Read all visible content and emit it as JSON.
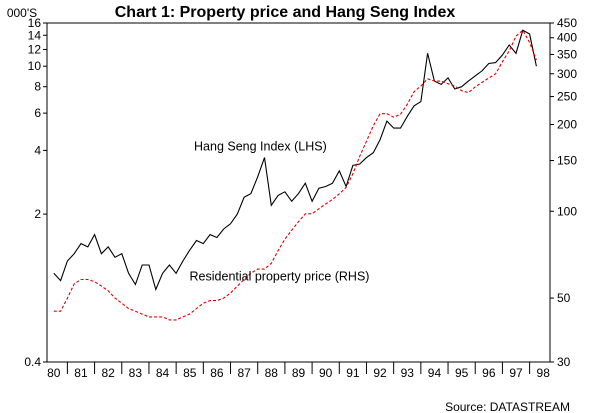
{
  "chart_data": {
    "type": "line",
    "title": "Chart 1: Property price and Hang Seng Index",
    "left_axis_unit": "000'S",
    "source": "Source: DATASTREAM",
    "x_categories": [
      "80",
      "81",
      "82",
      "83",
      "84",
      "85",
      "86",
      "87",
      "88",
      "89",
      "90",
      "91",
      "92",
      "93",
      "94",
      "95",
      "96",
      "97",
      "98"
    ],
    "y_left": {
      "scale": "log",
      "range": [
        0.4,
        16
      ],
      "ticks": [
        "0.4",
        "2",
        "4",
        "6",
        "8",
        "10",
        "12",
        "14",
        "16"
      ]
    },
    "y_right": {
      "scale": "log",
      "range": [
        30,
        450
      ],
      "ticks": [
        "30",
        "50",
        "100",
        "150",
        "200",
        "250",
        "300",
        "350",
        "400",
        "450"
      ]
    },
    "series": [
      {
        "name": "Hang Seng Index (LHS)",
        "axis": "left",
        "color": "#000000",
        "style": "solid",
        "x": [
          80.0,
          80.25,
          80.5,
          80.75,
          81.0,
          81.25,
          81.5,
          81.75,
          82.0,
          82.25,
          82.5,
          82.75,
          83.0,
          83.25,
          83.5,
          83.75,
          84.0,
          84.25,
          84.5,
          84.75,
          85.0,
          85.25,
          85.5,
          85.75,
          86.0,
          86.25,
          86.5,
          86.75,
          87.0,
          87.25,
          87.5,
          87.75,
          88.0,
          88.25,
          88.5,
          88.75,
          89.0,
          89.25,
          89.5,
          89.75,
          90.0,
          90.25,
          90.5,
          90.75,
          91.0,
          91.25,
          91.5,
          91.75,
          92.0,
          92.25,
          92.5,
          92.75,
          93.0,
          93.25,
          93.5,
          93.75,
          94.0,
          94.25,
          94.5,
          94.75,
          95.0,
          95.25,
          95.5,
          95.75,
          96.0,
          96.25,
          96.5,
          96.75,
          97.0,
          97.25,
          97.5,
          97.75
        ],
        "y": [
          1.05,
          0.97,
          1.2,
          1.3,
          1.45,
          1.4,
          1.6,
          1.3,
          1.4,
          1.25,
          1.3,
          1.05,
          0.93,
          1.15,
          1.15,
          0.88,
          1.05,
          1.15,
          1.05,
          1.2,
          1.35,
          1.5,
          1.45,
          1.6,
          1.55,
          1.7,
          1.8,
          2.0,
          2.4,
          2.5,
          3.0,
          3.7,
          2.2,
          2.45,
          2.55,
          2.3,
          2.5,
          2.8,
          2.3,
          2.65,
          2.7,
          2.8,
          3.2,
          2.7,
          3.4,
          3.45,
          3.7,
          3.9,
          4.5,
          5.5,
          5.1,
          5.1,
          5.8,
          6.5,
          6.8,
          11.5,
          8.5,
          8.2,
          8.8,
          7.8,
          8.0,
          8.5,
          9.0,
          9.5,
          10.3,
          10.4,
          11.3,
          12.6,
          11.5,
          14.8,
          14.2,
          10.0
        ]
      },
      {
        "name": "Residential property price (RHS)",
        "axis": "right",
        "color": "#e00000",
        "style": "dashed",
        "x": [
          80.0,
          80.25,
          80.5,
          80.75,
          81.0,
          81.25,
          81.5,
          81.75,
          82.0,
          82.25,
          82.5,
          82.75,
          83.0,
          83.25,
          83.5,
          83.75,
          84.0,
          84.25,
          84.5,
          84.75,
          85.0,
          85.25,
          85.5,
          85.75,
          86.0,
          86.25,
          86.5,
          86.75,
          87.0,
          87.25,
          87.5,
          87.75,
          88.0,
          88.25,
          88.5,
          88.75,
          89.0,
          89.25,
          89.5,
          89.75,
          90.0,
          90.25,
          90.5,
          90.75,
          91.0,
          91.25,
          91.5,
          91.75,
          92.0,
          92.25,
          92.5,
          92.75,
          93.0,
          93.25,
          93.5,
          93.75,
          94.0,
          94.25,
          94.5,
          94.75,
          95.0,
          95.25,
          95.5,
          95.75,
          96.0,
          96.25,
          96.5,
          96.75,
          97.0,
          97.25,
          97.5,
          97.75
        ],
        "y": [
          45,
          45,
          50,
          56,
          58,
          58,
          57,
          55,
          53,
          50,
          48,
          46,
          45,
          44,
          43,
          43,
          43,
          42,
          42,
          43,
          44,
          46,
          48,
          49,
          49,
          50,
          52,
          55,
          58,
          61,
          63,
          63,
          66,
          73,
          80,
          86,
          92,
          98,
          98,
          102,
          106,
          110,
          115,
          121,
          135,
          155,
          175,
          198,
          218,
          218,
          212,
          217,
          235,
          260,
          272,
          288,
          283,
          283,
          277,
          272,
          262,
          258,
          270,
          280,
          290,
          300,
          330,
          360,
          405,
          425,
          385,
          335
        ]
      }
    ],
    "annotations": [
      {
        "text": "Hang Seng Index (LHS)",
        "at_year": 87.6,
        "at_value_left": 4.0
      },
      {
        "text": "Residential property price (RHS)",
        "at_year": 88.3,
        "at_value_left": 0.97
      }
    ]
  }
}
